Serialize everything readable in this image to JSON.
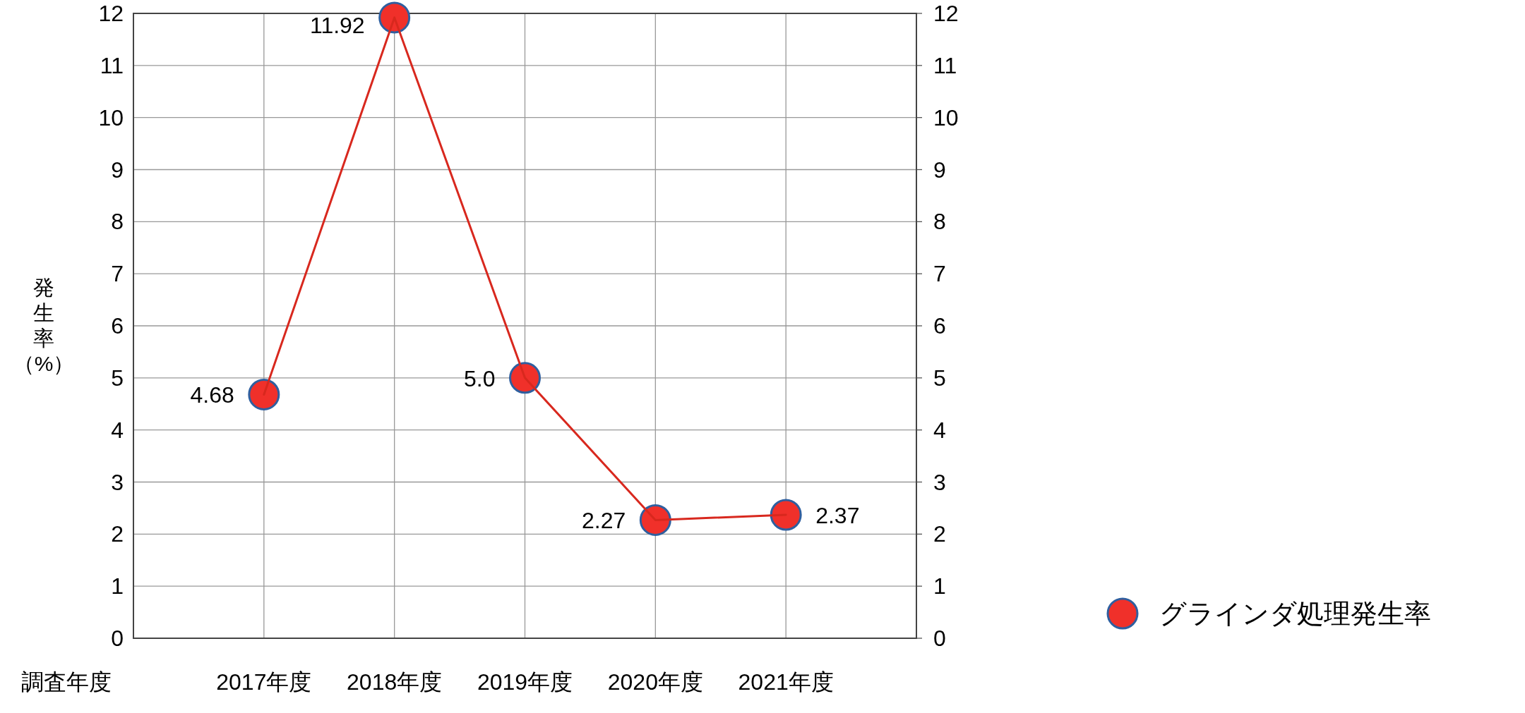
{
  "chart_data": {
    "type": "line",
    "xlabel": "調査年度",
    "ylabel": "発生率（%）",
    "categories": [
      "2017年度",
      "2018年度",
      "2019年度",
      "2020年度",
      "2021年度"
    ],
    "series": [
      {
        "name": "グラインダ処理発生率",
        "color": "#d8281e",
        "colors": [
          "#f0302a",
          "#f0302a",
          "#f0302a",
          "#f0302a",
          "#f0302a"
        ],
        "values": [
          4.68,
          11.92,
          5.0,
          2.27,
          2.37
        ],
        "value_labels": [
          "4.68",
          "11.92",
          "5.0",
          "2.27",
          "2.37"
        ]
      }
    ],
    "ylim": [
      0,
      12
    ],
    "yticks": [
      0,
      1,
      2,
      3,
      4,
      5,
      6,
      7,
      8,
      9,
      10,
      11,
      12
    ],
    "y2lim": [
      0,
      12
    ],
    "y2ticks": [
      0,
      1,
      2,
      3,
      4,
      5,
      6,
      7,
      8,
      9,
      10,
      11,
      12
    ],
    "grid": true,
    "legend": "bottom right",
    "marker": "circle",
    "line_style": "solid"
  }
}
